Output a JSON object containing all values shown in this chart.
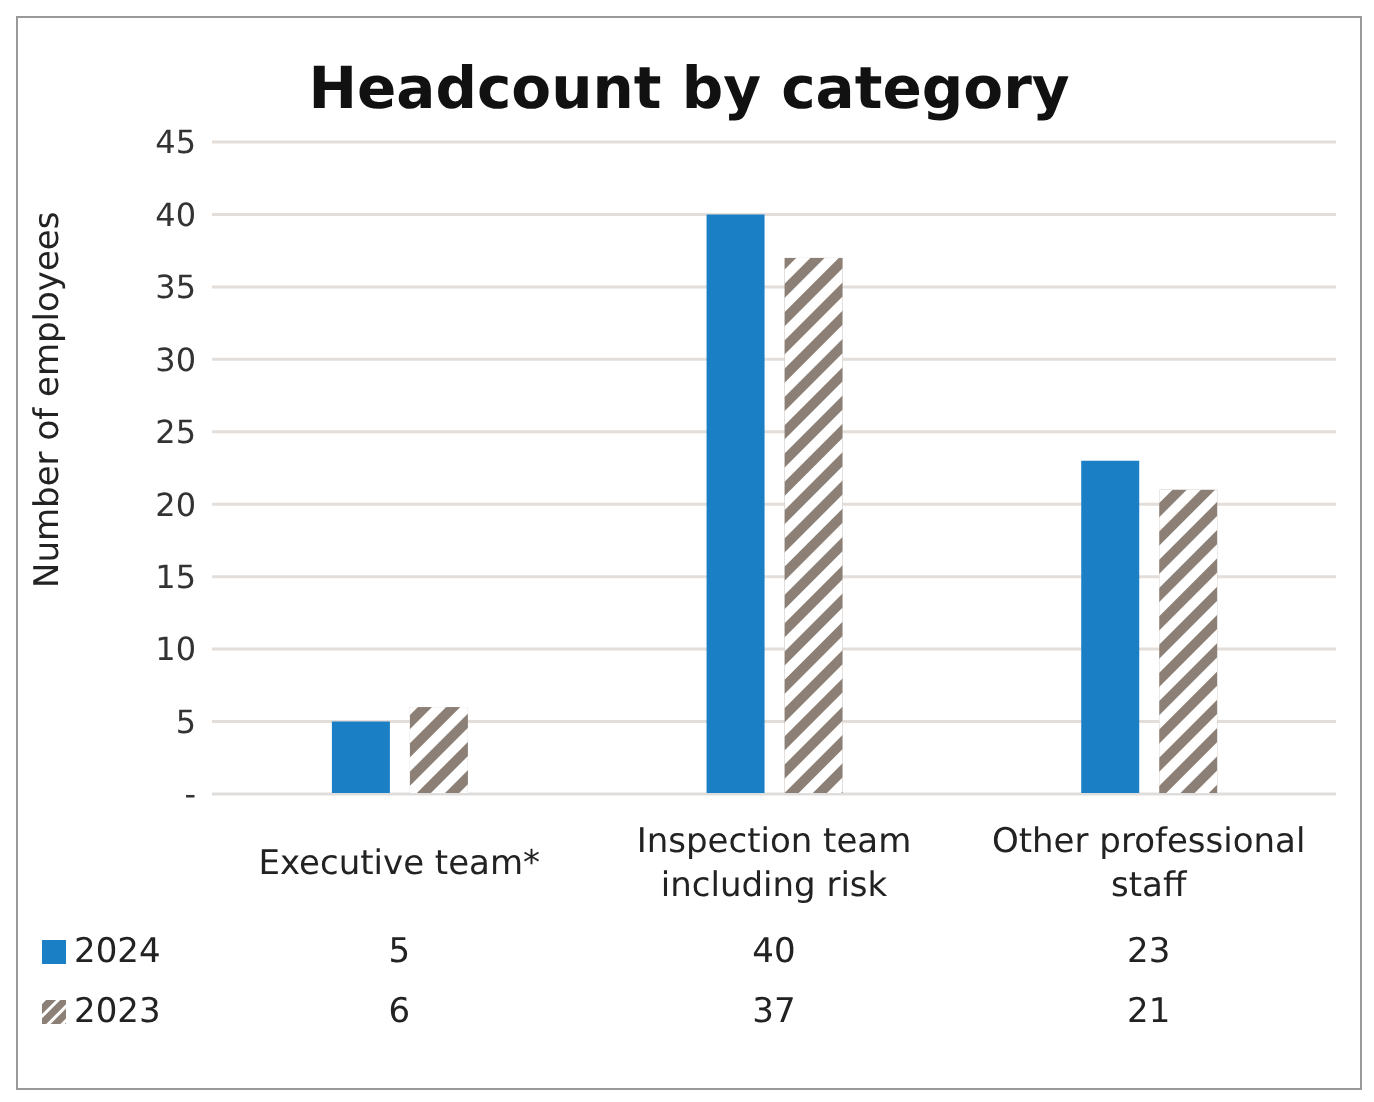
{
  "chart_data": {
    "type": "bar",
    "title": "Headcount by category",
    "ylabel": "Number of employees",
    "categories": [
      "Executive team*",
      "Inspection team including risk",
      "Other professional staff"
    ],
    "series": [
      {
        "name": "2024",
        "color": "#1a7fc4",
        "values": [
          5,
          40,
          23
        ]
      },
      {
        "name": "2023",
        "color": "#8c7f75",
        "values": [
          6,
          37,
          21
        ]
      }
    ],
    "ylim": [
      0,
      45
    ],
    "yticks": [
      {
        "value": 0,
        "label": "-"
      },
      5,
      10,
      15,
      20,
      25,
      30,
      35,
      40,
      45
    ],
    "grid": "y",
    "legend": "bottom",
    "data_labels": true
  }
}
